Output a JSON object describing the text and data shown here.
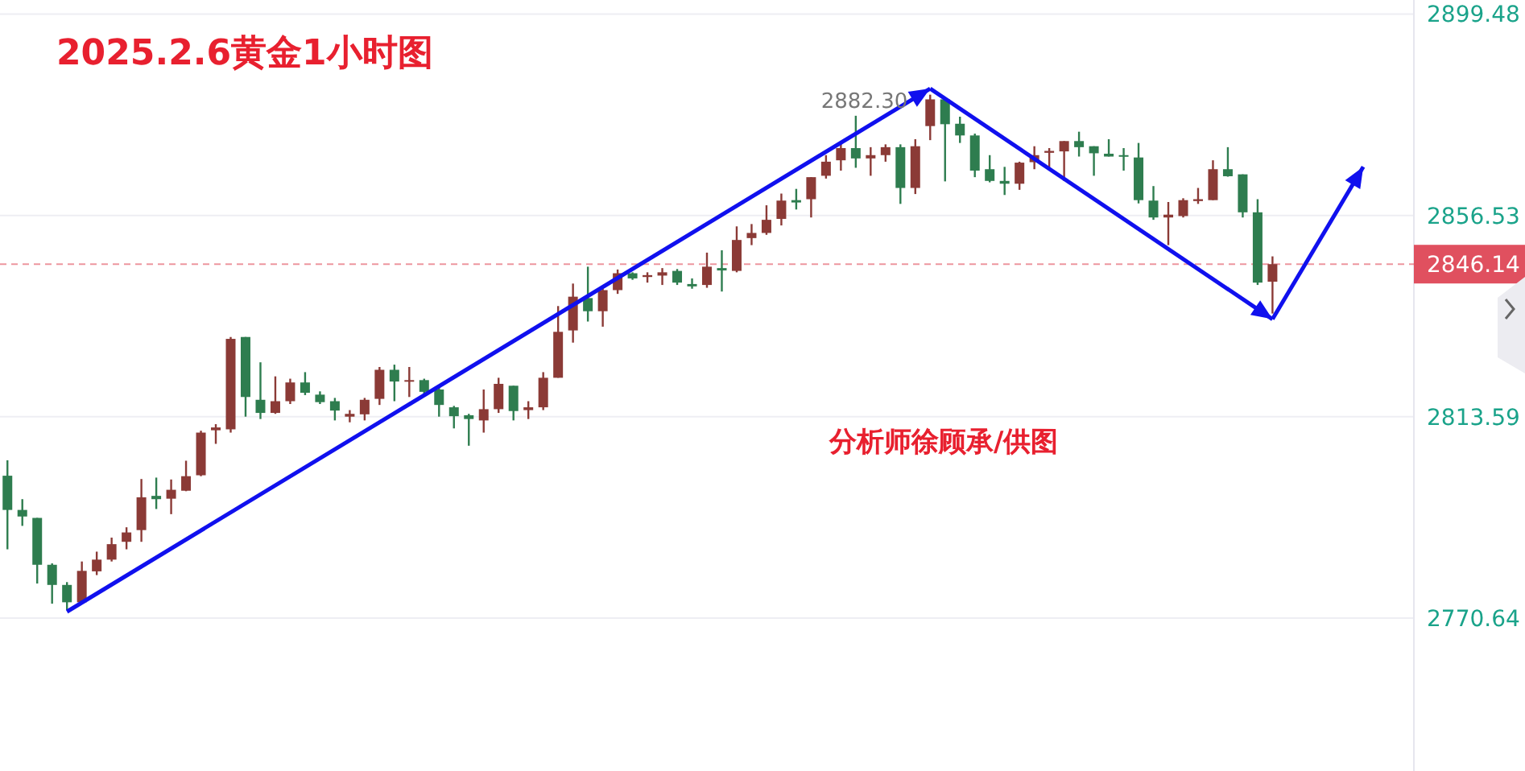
{
  "chart_data": {
    "type": "candlestick",
    "title": "2025.2.6黄金1小时图",
    "annotations": [
      "2882.30",
      "分析师徐顾承/供图"
    ],
    "categories": [
      null,
      null,
      null,
      null,
      null,
      null,
      null,
      null,
      null,
      null,
      null,
      null,
      null,
      null,
      null,
      null,
      null,
      null,
      null,
      null,
      null,
      null,
      null,
      null,
      null,
      null,
      null,
      null,
      null,
      null,
      null,
      null,
      null,
      null,
      null,
      null,
      null,
      null,
      null,
      null,
      null,
      null,
      null,
      null,
      null,
      null,
      null,
      null,
      null,
      null,
      null,
      null,
      null,
      null,
      null,
      null,
      null,
      null,
      null,
      null,
      null,
      null,
      null,
      null,
      null,
      null,
      null,
      null,
      null,
      null,
      null,
      null,
      null,
      null,
      null,
      null,
      null,
      null,
      null,
      null,
      null,
      null,
      null,
      null,
      null,
      null,
      null,
      null,
      null,
      null,
      null,
      null,
      null,
      null,
      null
    ],
    "ohlc": [
      [
        2801.0,
        2804.3,
        2785.3,
        2793.7
      ],
      [
        2793.7,
        2796.0,
        2790.3,
        2792.3
      ],
      [
        2792.0,
        2792.0,
        2778.0,
        2782.0
      ],
      [
        2782.0,
        2782.3,
        2773.7,
        2777.7
      ],
      [
        2777.7,
        2778.3,
        2772.3,
        2774.0
      ],
      [
        2774.0,
        2782.7,
        2774.0,
        2780.7
      ],
      [
        2780.6,
        2784.8,
        2779.8,
        2783.1
      ],
      [
        2783.1,
        2787.8,
        2782.7,
        2786.4
      ],
      [
        2786.9,
        2790.0,
        2785.3,
        2788.9
      ],
      [
        2789.4,
        2800.3,
        2786.9,
        2796.4
      ],
      [
        2796.7,
        2800.6,
        2793.9,
        2796.0
      ],
      [
        2796.1,
        2800.2,
        2792.8,
        2798.0
      ],
      [
        2797.8,
        2804.2,
        2797.7,
        2800.9
      ],
      [
        2801.1,
        2810.6,
        2800.9,
        2810.2
      ],
      [
        2810.7,
        2812.0,
        2807.8,
        2811.3
      ],
      [
        2810.9,
        2830.6,
        2810.2,
        2830.2
      ],
      [
        2830.6,
        2830.6,
        2813.6,
        2817.8
      ],
      [
        2817.2,
        2825.2,
        2813.1,
        2814.4
      ],
      [
        2814.4,
        2822.2,
        2814.2,
        2816.9
      ],
      [
        2816.9,
        2821.7,
        2816.3,
        2820.9
      ],
      [
        2820.9,
        2823.1,
        2818.2,
        2818.7
      ],
      [
        2818.3,
        2819.0,
        2816.3,
        2816.7
      ],
      [
        2816.9,
        2817.6,
        2812.8,
        2814.9
      ],
      [
        2813.6,
        2815.0,
        2812.4,
        2814.2
      ],
      [
        2814.1,
        2817.6,
        2812.8,
        2817.2
      ],
      [
        2817.4,
        2824.2,
        2816.1,
        2823.6
      ],
      [
        2823.6,
        2824.7,
        2816.9,
        2821.1
      ],
      [
        2821.1,
        2824.2,
        2817.8,
        2821.4
      ],
      [
        2821.4,
        2821.7,
        2818.0,
        2818.9
      ],
      [
        2819.4,
        2820.0,
        2813.6,
        2816.1
      ],
      [
        2815.6,
        2815.9,
        2811.1,
        2813.7
      ],
      [
        2813.9,
        2814.2,
        2807.4,
        2813.1
      ],
      [
        2812.8,
        2819.4,
        2810.2,
        2815.2
      ],
      [
        2815.2,
        2821.9,
        2814.4,
        2820.6
      ],
      [
        2820.2,
        2820.2,
        2812.8,
        2814.8
      ],
      [
        2815.0,
        2816.9,
        2813.1,
        2815.6
      ],
      [
        2815.6,
        2823.1,
        2815.0,
        2821.9
      ],
      [
        2821.9,
        2837.2,
        2821.9,
        2831.7
      ],
      [
        2832.0,
        2842.0,
        2829.4,
        2839.2
      ],
      [
        2838.9,
        2845.6,
        2833.9,
        2836.1
      ],
      [
        2836.1,
        2841.3,
        2832.8,
        2840.6
      ],
      [
        2840.6,
        2845.0,
        2839.8,
        2844.2
      ],
      [
        2844.2,
        2844.4,
        2842.8,
        2843.1
      ],
      [
        2843.4,
        2844.4,
        2842.2,
        2843.8
      ],
      [
        2843.7,
        2845.3,
        2841.7,
        2844.4
      ],
      [
        2844.7,
        2845.1,
        2841.7,
        2842.2
      ],
      [
        2841.9,
        2843.1,
        2840.9,
        2841.4
      ],
      [
        2841.7,
        2848.6,
        2841.1,
        2845.6
      ],
      [
        2845.3,
        2849.1,
        2840.3,
        2844.8
      ],
      [
        2844.7,
        2854.2,
        2844.4,
        2851.3
      ],
      [
        2851.7,
        2854.7,
        2850.2,
        2852.8
      ],
      [
        2852.8,
        2858.7,
        2852.4,
        2855.6
      ],
      [
        2855.8,
        2861.2,
        2854.4,
        2859.7
      ],
      [
        2859.8,
        2862.2,
        2857.8,
        2859.3
      ],
      [
        2860.0,
        2864.7,
        2856.1,
        2864.7
      ],
      [
        2865.0,
        2869.4,
        2864.4,
        2868.0
      ],
      [
        2868.3,
        2872.2,
        2866.1,
        2870.9
      ],
      [
        2870.9,
        2877.8,
        2866.7,
        2868.7
      ],
      [
        2868.7,
        2871.1,
        2865.0,
        2869.4
      ],
      [
        2869.4,
        2871.7,
        2868.0,
        2871.1
      ],
      [
        2871.1,
        2871.7,
        2859.0,
        2862.4
      ],
      [
        2862.4,
        2872.8,
        2861.1,
        2871.3
      ],
      [
        2875.6,
        2882.3,
        2872.6,
        2881.3
      ],
      [
        2881.3,
        2881.5,
        2863.8,
        2876.0
      ],
      [
        2876.1,
        2877.6,
        2872.0,
        2873.6
      ],
      [
        2873.6,
        2874.0,
        2864.7,
        2866.1
      ],
      [
        2866.4,
        2869.4,
        2863.6,
        2863.9
      ],
      [
        2863.9,
        2866.9,
        2860.9,
        2863.3
      ],
      [
        2863.3,
        2868.0,
        2862.0,
        2867.8
      ],
      [
        2867.9,
        2871.3,
        2866.4,
        2869.4
      ],
      [
        2869.9,
        2870.9,
        2866.7,
        2870.3
      ],
      [
        2870.2,
        2872.4,
        2863.9,
        2872.4
      ],
      [
        2872.4,
        2874.4,
        2869.1,
        2871.1
      ],
      [
        2871.3,
        2871.3,
        2865.0,
        2869.8
      ],
      [
        2869.7,
        2872.8,
        2869.1,
        2869.1
      ],
      [
        2869.4,
        2870.9,
        2866.1,
        2869.1
      ],
      [
        2868.9,
        2872.0,
        2859.1,
        2859.8
      ],
      [
        2859.7,
        2862.8,
        2855.6,
        2856.1
      ],
      [
        2856.1,
        2859.4,
        2850.2,
        2856.7
      ],
      [
        2856.4,
        2860.2,
        2856.1,
        2859.8
      ],
      [
        2859.6,
        2862.4,
        2859.0,
        2860.0
      ],
      [
        2859.8,
        2868.3,
        2859.8,
        2866.4
      ],
      [
        2866.4,
        2871.1,
        2864.8,
        2864.9
      ],
      [
        2865.3,
        2865.3,
        2856.1,
        2857.2
      ],
      [
        2857.2,
        2860.0,
        2841.7,
        2842.2
      ],
      [
        2842.4,
        2847.8,
        2835.6,
        2846.14
      ],
      null,
      null,
      null,
      null,
      null,
      null,
      null,
      null,
      null
    ],
    "colors": [
      "#2e7d4f",
      "#2e7d4f",
      "#2e7d4f",
      "#2e7d4f",
      "#2e7d4f",
      "#8b3a36",
      "#8b3a36",
      "#8b3a36",
      "#8b3a36",
      "#8b3a36",
      "#2e7d4f",
      "#8b3a36",
      "#8b3a36",
      "#8b3a36",
      "#8b3a36",
      "#8b3a36",
      "#2e7d4f",
      "#2e7d4f",
      "#8b3a36",
      "#8b3a36",
      "#2e7d4f",
      "#2e7d4f",
      "#2e7d4f",
      "#8b3a36",
      "#8b3a36",
      "#8b3a36",
      "#2e7d4f",
      "#8b3a36",
      "#2e7d4f",
      "#2e7d4f",
      "#2e7d4f",
      "#2e7d4f",
      "#8b3a36",
      "#8b3a36",
      "#2e7d4f",
      "#8b3a36",
      "#8b3a36",
      "#8b3a36",
      "#8b3a36",
      "#2e7d4f",
      "#8b3a36",
      "#8b3a36",
      "#2e7d4f",
      "#8b3a36",
      "#8b3a36",
      "#2e7d4f",
      "#2e7d4f",
      "#8b3a36",
      "#2e7d4f",
      "#8b3a36",
      "#8b3a36",
      "#8b3a36",
      "#8b3a36",
      "#2e7d4f",
      "#8b3a36",
      "#8b3a36",
      "#8b3a36",
      "#2e7d4f",
      "#8b3a36",
      "#8b3a36",
      "#2e7d4f",
      "#8b3a36",
      "#8b3a36",
      "#2e7d4f",
      "#2e7d4f",
      "#2e7d4f",
      "#2e7d4f",
      "#2e7d4f",
      "#8b3a36",
      "#8b3a36",
      "#8b3a36",
      "#8b3a36",
      "#2e7d4f",
      "#2e7d4f",
      "#2e7d4f",
      "#2e7d4f",
      "#2e7d4f",
      "#2e7d4f",
      "#8b3a36",
      "#8b3a36",
      "#8b3a36",
      "#8b3a36",
      "#2e7d4f",
      "#2e7d4f",
      "#2e7d4f",
      "#8b3a36",
      null,
      null,
      null,
      null,
      null,
      null,
      null,
      null,
      null
    ],
    "ylim": [
      2738,
      2902.5
    ],
    "yticks": [
      2899.48,
      2856.53,
      2813.59,
      2770.64
    ],
    "grid": "y",
    "ref_lines": [
      {
        "axis": "y",
        "value": 2846.14,
        "label": "2846.14",
        "color": "#e0505f",
        "line_style": "dashed"
      }
    ]
  }
}
